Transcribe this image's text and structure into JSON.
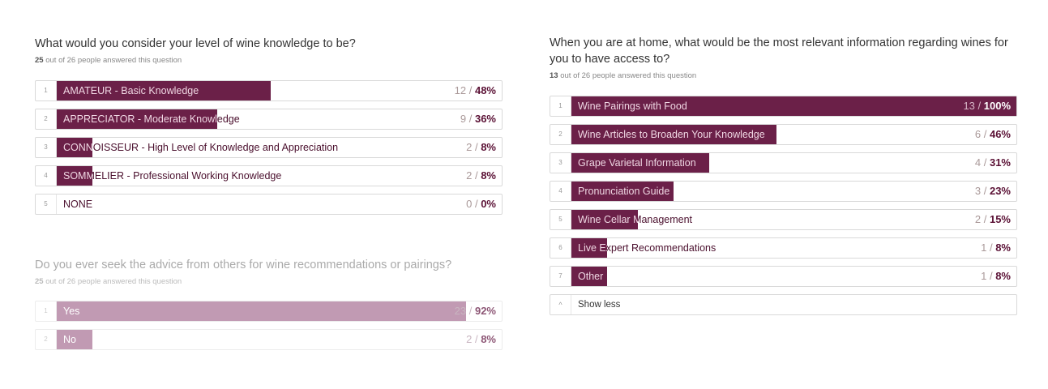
{
  "colors": {
    "accent": "#6b2048",
    "muted_accent": "#c19ab3"
  },
  "q1": {
    "title": "What would you consider your level of wine knowledge to be?",
    "answered": "25",
    "answered_rest": " out of 26 people answered this question",
    "options": [
      {
        "num": "1",
        "label": "AMATEUR - Basic Knowledge",
        "count": "12",
        "pct": "48%",
        "value": 0.48
      },
      {
        "num": "2",
        "label": "APPRECIATOR - Moderate Knowledge",
        "count": "9",
        "pct": "36%",
        "value": 0.36
      },
      {
        "num": "3",
        "label": "CONNOISSEUR - High Level of Knowledge and Appreciation",
        "count": "2",
        "pct": "8%",
        "value": 0.08
      },
      {
        "num": "4",
        "label": "SOMMELIER - Professional Working Knowledge",
        "count": "2",
        "pct": "8%",
        "value": 0.08
      },
      {
        "num": "5",
        "label": "NONE",
        "count": "0",
        "pct": "0%",
        "value": 0.0
      }
    ]
  },
  "q2": {
    "title": "Do you ever seek the advice from others for wine recommendations or pairings?",
    "answered": "25",
    "answered_rest": " out of 26 people answered this question",
    "options": [
      {
        "num": "1",
        "label": "Yes",
        "count": "23",
        "pct": "92%",
        "value": 0.92
      },
      {
        "num": "2",
        "label": "No",
        "count": "2",
        "pct": "8%",
        "value": 0.08
      }
    ]
  },
  "q3": {
    "title": "When you are at home, what would be the most relevant information regarding wines for you to have access to?",
    "answered": "13",
    "answered_rest": " out of 26 people answered this question",
    "options": [
      {
        "num": "1",
        "label": "Wine Pairings with Food",
        "count": "13",
        "pct": "100%",
        "value": 1.0
      },
      {
        "num": "2",
        "label": "Wine Articles to Broaden Your Knowledge",
        "count": "6",
        "pct": "46%",
        "value": 0.46
      },
      {
        "num": "3",
        "label": "Grape Varietal Information",
        "count": "4",
        "pct": "31%",
        "value": 0.31
      },
      {
        "num": "4",
        "label": "Pronunciation Guide",
        "count": "3",
        "pct": "23%",
        "value": 0.23
      },
      {
        "num": "5",
        "label": "Wine Cellar Management",
        "count": "2",
        "pct": "15%",
        "value": 0.15
      },
      {
        "num": "6",
        "label": "Live Expert Recommendations",
        "count": "1",
        "pct": "8%",
        "value": 0.08
      },
      {
        "num": "7",
        "label": "Other",
        "count": "1",
        "pct": "8%",
        "value": 0.08
      }
    ],
    "show_less": {
      "icon": "^",
      "label": "Show less"
    }
  }
}
